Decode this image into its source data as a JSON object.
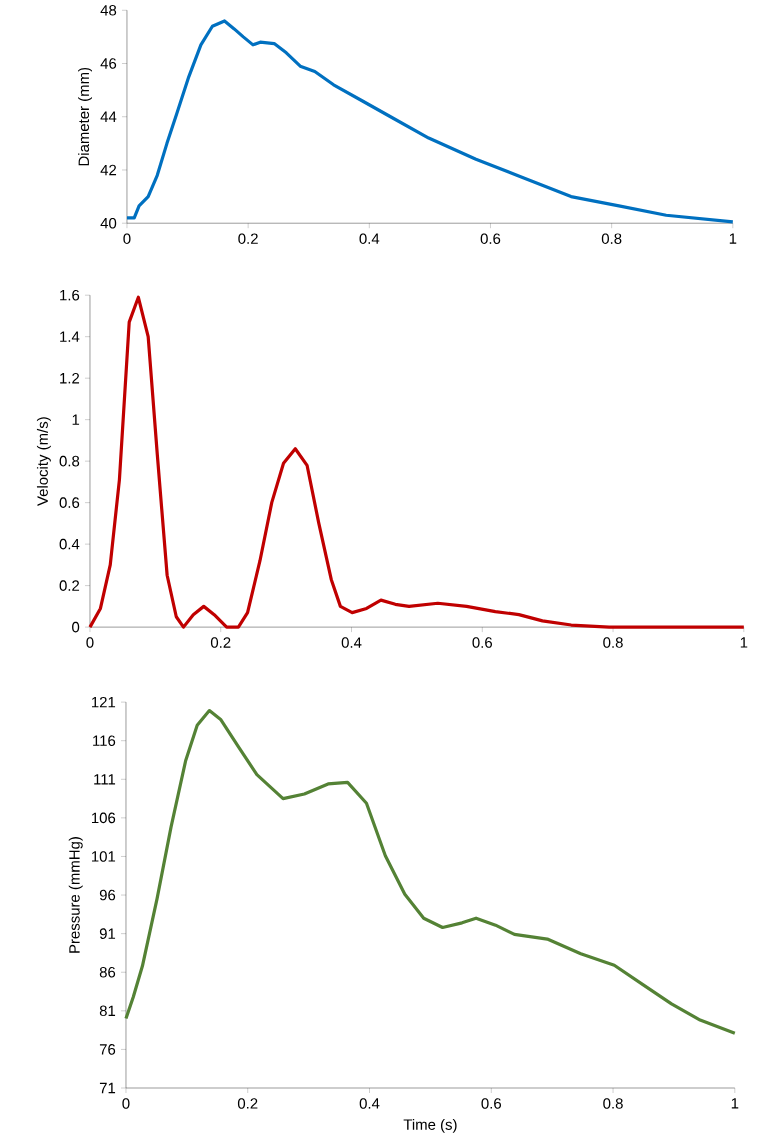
{
  "chart_data": [
    {
      "type": "line",
      "ylabel": "Diameter (mm)",
      "xlim": [
        0,
        1
      ],
      "ylim": [
        40,
        48
      ],
      "xticks": [
        0,
        0.2,
        0.4,
        0.6,
        0.8,
        1
      ],
      "yticks": [
        40,
        42,
        44,
        46,
        48
      ],
      "grid": false,
      "series": [
        {
          "color": "#0070c0",
          "x": [
            0,
            0.012,
            0.02,
            0.035,
            0.05,
            0.066,
            0.082,
            0.102,
            0.122,
            0.141,
            0.161,
            0.177,
            0.192,
            0.208,
            0.22,
            0.243,
            0.263,
            0.286,
            0.31,
            0.341,
            0.388,
            0.435,
            0.498,
            0.576,
            0.655,
            0.733,
            0.812,
            0.89,
            1
          ],
          "values": [
            40.2,
            40.2,
            40.65,
            41.0,
            41.8,
            43.0,
            44.1,
            45.5,
            46.7,
            47.4,
            47.6,
            47.3,
            47.0,
            46.7,
            46.8,
            46.75,
            46.4,
            45.9,
            45.7,
            45.2,
            44.6,
            44.0,
            43.2,
            42.4,
            41.7,
            41.0,
            40.65,
            40.3,
            40.05
          ]
        }
      ]
    },
    {
      "type": "line",
      "ylabel": "Velocity (m/s)",
      "xlim": [
        0,
        1
      ],
      "ylim": [
        0,
        1.6
      ],
      "xticks": [
        0,
        0.2,
        0.4,
        0.6,
        0.8,
        1
      ],
      "yticks": [
        0,
        0.2,
        0.4,
        0.6,
        0.8,
        1,
        1.2,
        1.4,
        1.6
      ],
      "grid": false,
      "series": [
        {
          "color": "#c00000",
          "x": [
            0,
            0.016,
            0.031,
            0.045,
            0.06,
            0.074,
            0.089,
            0.103,
            0.118,
            0.132,
            0.143,
            0.158,
            0.174,
            0.19,
            0.209,
            0.227,
            0.241,
            0.26,
            0.278,
            0.296,
            0.314,
            0.332,
            0.35,
            0.369,
            0.383,
            0.401,
            0.423,
            0.445,
            0.467,
            0.488,
            0.532,
            0.576,
            0.62,
            0.656,
            0.692,
            0.736,
            0.794,
            1
          ],
          "values": [
            0,
            0.09,
            0.3,
            0.71,
            1.47,
            1.59,
            1.4,
            0.83,
            0.25,
            0.05,
            0.0,
            0.06,
            0.1,
            0.06,
            0.0,
            0.0,
            0.07,
            0.32,
            0.6,
            0.79,
            0.86,
            0.78,
            0.5,
            0.23,
            0.1,
            0.07,
            0.09,
            0.13,
            0.11,
            0.1,
            0.115,
            0.1,
            0.075,
            0.06,
            0.03,
            0.01,
            0.0,
            0
          ]
        }
      ]
    },
    {
      "type": "line",
      "xlabel": "Time (s)",
      "ylabel": "Pressure (mmHg)",
      "xlim": [
        0,
        1
      ],
      "ylim": [
        71,
        121
      ],
      "xticks": [
        0,
        0.2,
        0.4,
        0.6,
        0.8,
        1
      ],
      "yticks": [
        71,
        76,
        81,
        86,
        91,
        96,
        101,
        106,
        111,
        116,
        121
      ],
      "grid": false,
      "series": [
        {
          "color": "#548235",
          "x": [
            0,
            0.012,
            0.027,
            0.051,
            0.074,
            0.098,
            0.117,
            0.137,
            0.156,
            0.184,
            0.215,
            0.258,
            0.293,
            0.332,
            0.364,
            0.395,
            0.426,
            0.458,
            0.489,
            0.52,
            0.552,
            0.575,
            0.607,
            0.638,
            0.692,
            0.747,
            0.802,
            0.849,
            0.896,
            0.943,
            1
          ],
          "values": [
            80,
            82.8,
            86.8,
            95.5,
            104.8,
            113.4,
            118.0,
            119.9,
            118.7,
            115.3,
            111.6,
            108.5,
            109.1,
            110.4,
            110.6,
            107.9,
            101.1,
            96.1,
            93.0,
            91.8,
            92.4,
            93.0,
            92.1,
            90.9,
            90.3,
            88.4,
            86.9,
            84.4,
            81.9,
            79.8,
            78.1
          ]
        }
      ]
    }
  ]
}
